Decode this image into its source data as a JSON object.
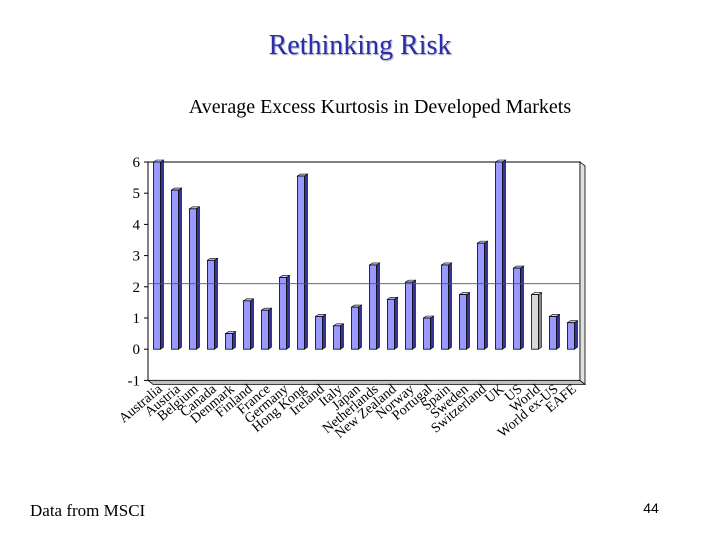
{
  "slide": {
    "title": "Rethinking Risk",
    "footer_note": "Data from MSCI",
    "page_number": "44"
  },
  "colors": {
    "bar_front": "#9999ff",
    "bar_side": "#333399",
    "bar_top": "#c8c8ff",
    "highlight_bar": "#d8d8d8",
    "title": "#2a2fa6"
  },
  "chart_data": {
    "type": "bar",
    "title": "Average Excess Kurtosis in Developed Markets",
    "xlabel": "",
    "ylabel": "",
    "ylim": [
      -1,
      6
    ],
    "yticks": [
      -1,
      0,
      1,
      2,
      3,
      4,
      5,
      6
    ],
    "grid": false,
    "reference_line": 2.1,
    "highlighted_category": "World",
    "categories": [
      "Australia",
      "Austria",
      "Belgium",
      "Canada",
      "Denmark",
      "Finland",
      "France",
      "Germany",
      "Hong Kong",
      "Ireland",
      "Italy",
      "Japan",
      "Netherlands",
      "New Zealand",
      "Norway",
      "Portugal",
      "Spain",
      "Sweden",
      "Switzerland",
      "UK",
      "US",
      "World",
      "World ex-US",
      "EAFE"
    ],
    "values": [
      6.0,
      5.1,
      4.5,
      2.85,
      0.5,
      1.55,
      1.25,
      2.3,
      5.55,
      1.05,
      0.75,
      1.35,
      2.7,
      1.6,
      2.15,
      1.0,
      2.7,
      1.75,
      3.4,
      6.0,
      2.6,
      1.75,
      1.05,
      0.85
    ]
  }
}
